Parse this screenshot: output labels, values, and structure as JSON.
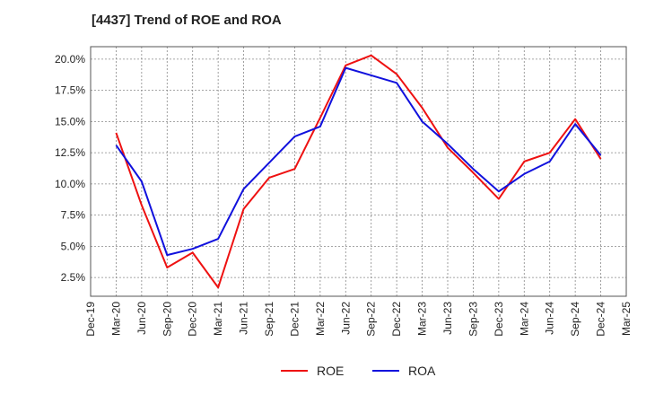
{
  "chart_data": {
    "type": "line",
    "title": "[4437]  Trend of ROE and ROA",
    "xlabel": "",
    "ylabel": "",
    "categories": [
      "Dec-19",
      "Mar-20",
      "Jun-20",
      "Sep-20",
      "Dec-20",
      "Mar-21",
      "Jun-21",
      "Sep-21",
      "Dec-21",
      "Mar-22",
      "Jun-22",
      "Sep-22",
      "Dec-22",
      "Mar-23",
      "Jun-23",
      "Sep-23",
      "Dec-23",
      "Mar-24",
      "Jun-24",
      "Sep-24",
      "Dec-24",
      "Mar-25"
    ],
    "yticks": [
      "2.5%",
      "5.0%",
      "7.5%",
      "10.0%",
      "12.5%",
      "15.0%",
      "17.5%",
      "20.0%"
    ],
    "ylim": [
      1.0,
      21.0
    ],
    "grid": true,
    "legend_position": "bottom",
    "series": [
      {
        "name": "ROE",
        "color": "#ee1111",
        "values": [
          null,
          14.1,
          8.3,
          3.3,
          4.5,
          1.7,
          8.0,
          10.5,
          11.2,
          15.3,
          19.5,
          20.3,
          18.8,
          16.1,
          12.9,
          10.9,
          8.8,
          11.8,
          12.5,
          15.2,
          12.0,
          null
        ]
      },
      {
        "name": "ROA",
        "color": "#1111dd",
        "values": [
          null,
          13.1,
          10.2,
          4.3,
          4.8,
          5.6,
          9.6,
          11.7,
          13.8,
          14.6,
          19.3,
          18.7,
          18.1,
          15.0,
          13.2,
          11.2,
          9.4,
          10.8,
          11.8,
          14.8,
          12.3,
          null
        ]
      }
    ]
  }
}
